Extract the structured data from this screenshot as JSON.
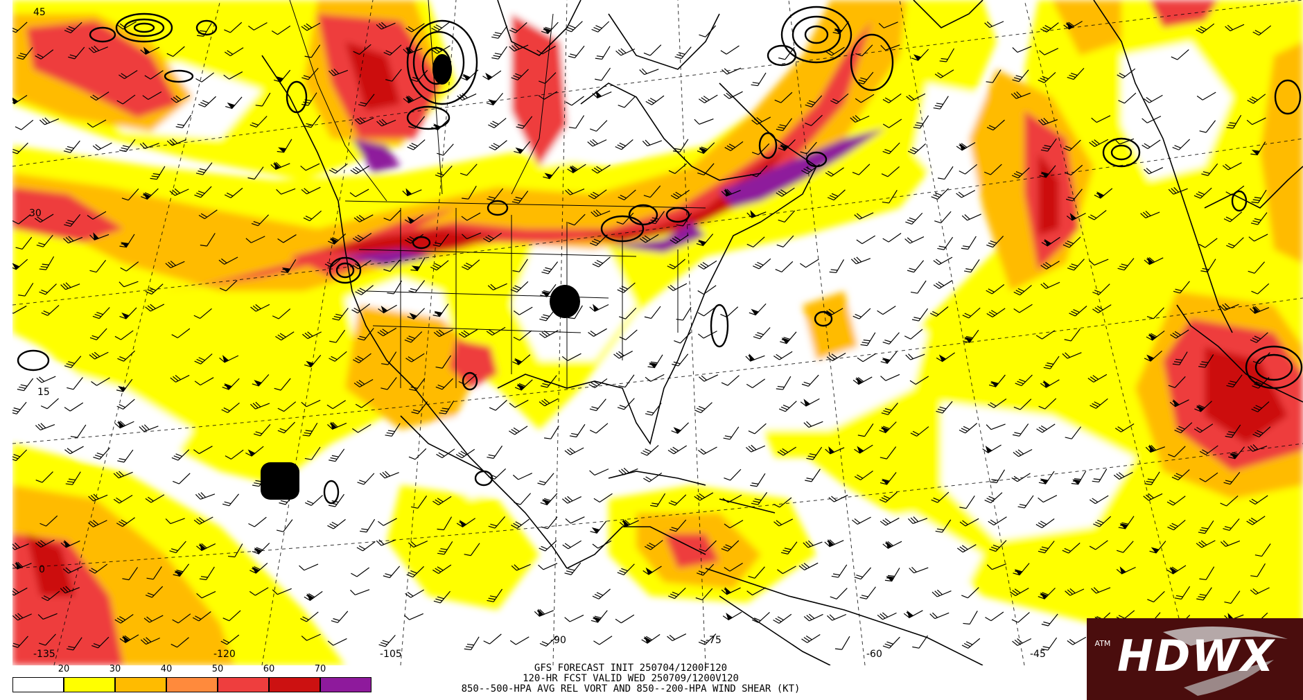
{
  "map": {
    "title_lines": [
      "GFS FORECAST INIT 250704/1200F120",
      "120-HR FCST VALID WED 250709/1200V120",
      "850--500-HPA AVG REL VORT AND 850--200-HPA WIND SHEAR (KT)"
    ],
    "longitude_labels": [
      "-135",
      "-120",
      "-105",
      "-90",
      "-75",
      "-60",
      "-45"
    ],
    "latitude_labels": [
      "45",
      "30",
      "15",
      "0"
    ],
    "colorbar": {
      "ticks": [
        "20",
        "30",
        "40",
        "50",
        "60",
        "70"
      ],
      "colors": [
        "#ffffff",
        "#ffff00",
        "#ffbb00",
        "#ff8a3c",
        "#ee3e3e",
        "#cc1111",
        "#8e1a9c"
      ]
    },
    "logo": {
      "text": "HDWX",
      "badge": "ATM"
    }
  }
}
